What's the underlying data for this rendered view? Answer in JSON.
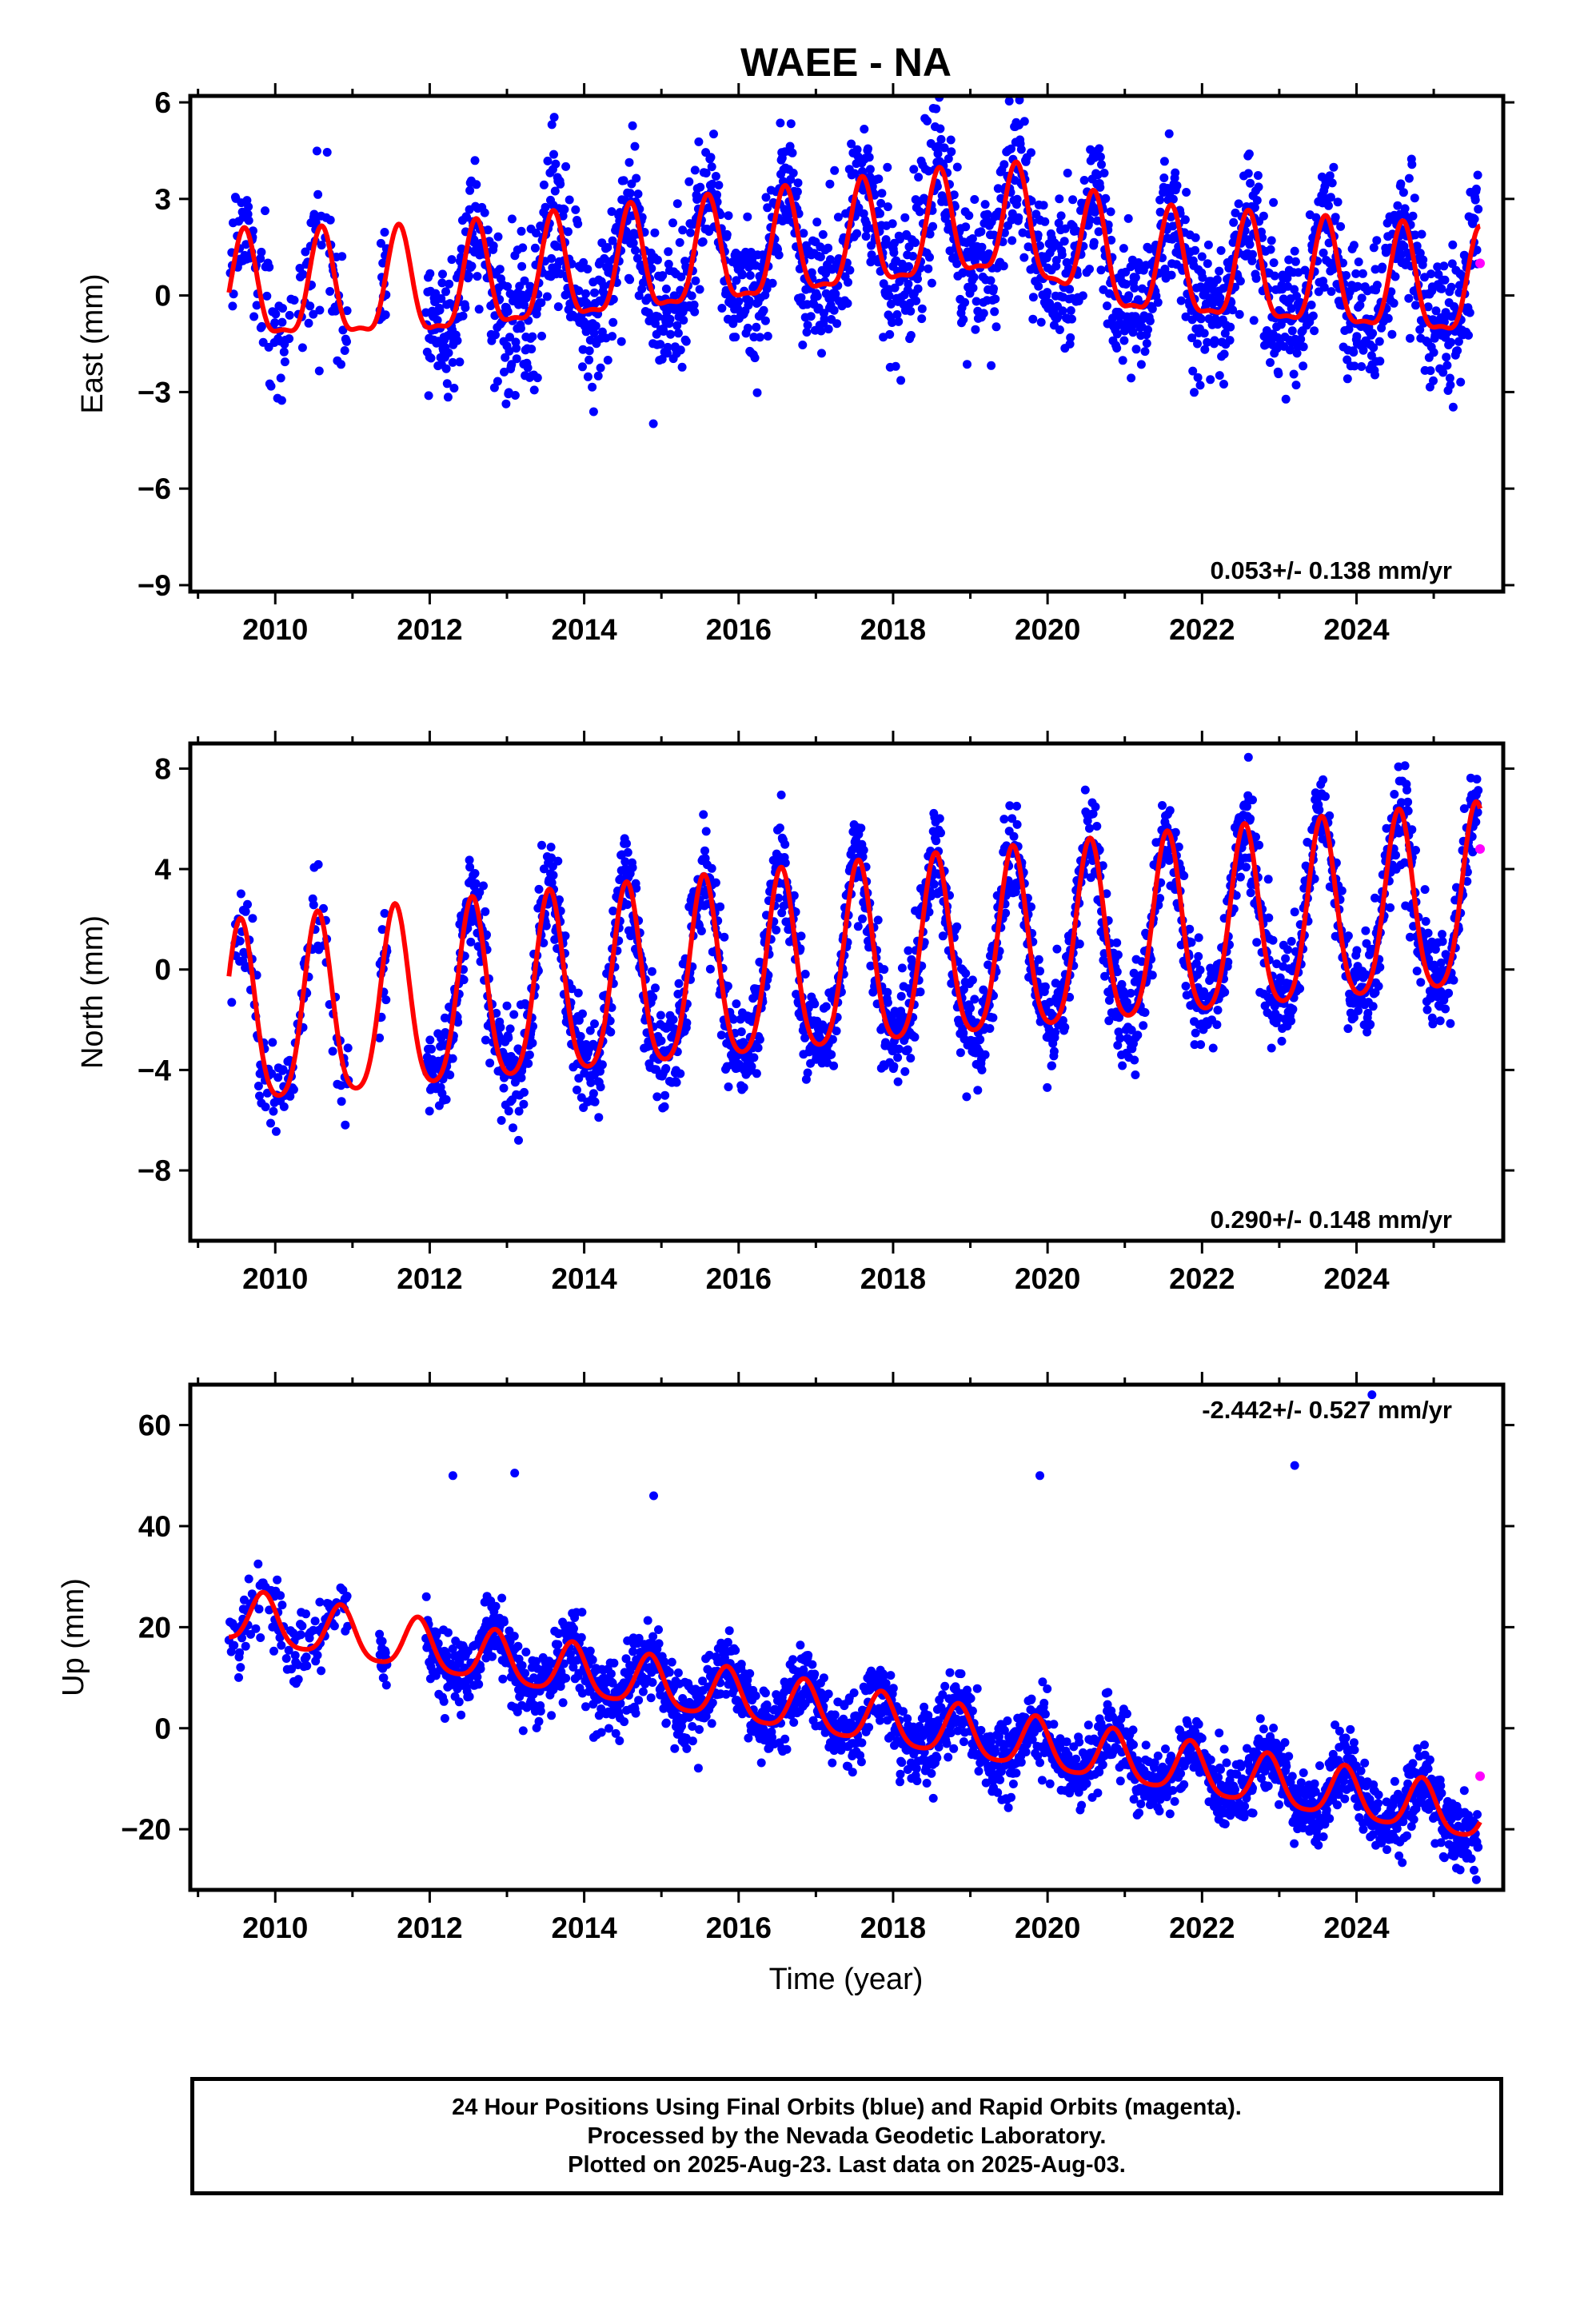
{
  "title": "WAEE - NA",
  "x_axis": {
    "label": "Time (year)",
    "range": [
      2008.9,
      2025.9
    ],
    "ticks": [
      2010,
      2012,
      2014,
      2016,
      2018,
      2020,
      2022,
      2024
    ]
  },
  "colors": {
    "final_orbits": "#0000ff",
    "rapid_orbits": "#ff00ff",
    "model_fit": "#ff0000",
    "frame": "#000000"
  },
  "footer": {
    "line1": "24 Hour Positions Using Final Orbits (blue) and Rapid Orbits (magenta).",
    "line2": "Processed by the Nevada Geodetic Laboratory.",
    "line3": "Plotted on 2025-Aug-23. Last data on 2025-Aug-03."
  },
  "chart_data": [
    {
      "type": "scatter",
      "panel": "east",
      "ylabel": "East (mm)",
      "ylim": [
        -9.2,
        6.2
      ],
      "yticks": [
        -9,
        -6,
        -3,
        0,
        3,
        6
      ],
      "ytick_labels": [
        "−9",
        "−6",
        "−3",
        "0",
        "3",
        "6"
      ],
      "rate_text": "0.053+/- 0.138 mm/yr",
      "rate_position": "bottom-right",
      "model": {
        "offset": 0.0,
        "rate": 0.053,
        "annual_amp": 1.6,
        "semiannual_amp": 0.5,
        "peak_phase": 0.6,
        "ref_year": 2009.4
      },
      "series_shift": [
        [
          2009.4,
          0.0
        ],
        [
          2012.0,
          0.0
        ],
        [
          2016.0,
          0.8
        ],
        [
          2019.5,
          1.6
        ],
        [
          2021.0,
          0.2
        ],
        [
          2025.6,
          -0.8
        ]
      ],
      "scatter_std": 1.1,
      "rapid_point": {
        "x": 2025.6,
        "y": 1.0
      }
    },
    {
      "type": "scatter",
      "panel": "north",
      "ylabel": "North (mm)",
      "ylim": [
        -10.8,
        9.0
      ],
      "yticks": [
        -8,
        -4,
        0,
        4,
        8
      ],
      "ytick_labels": [
        "−8",
        "−4",
        "0",
        "4",
        "8"
      ],
      "rate_text": "0.290+/- 0.148 mm/yr",
      "rate_position": "bottom-right",
      "model": {
        "offset": -2.2,
        "rate": 0.29,
        "annual_amp": 3.6,
        "semiannual_amp": 0.6,
        "peak_phase": 0.55,
        "ref_year": 2009.4
      },
      "series_shift": [
        [
          2009.4,
          0.0
        ],
        [
          2025.6,
          0.0
        ]
      ],
      "scatter_std": 1.0,
      "rapid_point": {
        "x": 2025.6,
        "y": 4.8
      }
    },
    {
      "type": "scatter",
      "panel": "up",
      "ylabel": "Up (mm)",
      "ylim": [
        -32,
        68
      ],
      "yticks": [
        -20,
        0,
        20,
        40,
        60
      ],
      "ytick_labels": [
        "−20",
        "0",
        "20",
        "40",
        "60"
      ],
      "rate_text": "-2.442+/- 0.527 mm/yr",
      "rate_position": "top-right",
      "model": {
        "offset": 22.0,
        "rate": -2.442,
        "annual_amp": 5.0,
        "semiannual_amp": 1.0,
        "peak_phase": 0.85,
        "ref_year": 2009.4
      },
      "series_shift": [
        [
          2009.4,
          0.0
        ],
        [
          2025.6,
          0.0
        ]
      ],
      "scatter_std": 3.5,
      "rapid_point": {
        "x": 2025.6,
        "y": -9.5
      },
      "outliers": [
        [
          2012.3,
          50
        ],
        [
          2013.1,
          50.5
        ],
        [
          2014.9,
          46
        ],
        [
          2019.9,
          50
        ],
        [
          2023.2,
          52
        ],
        [
          2024.2,
          66
        ]
      ]
    }
  ]
}
